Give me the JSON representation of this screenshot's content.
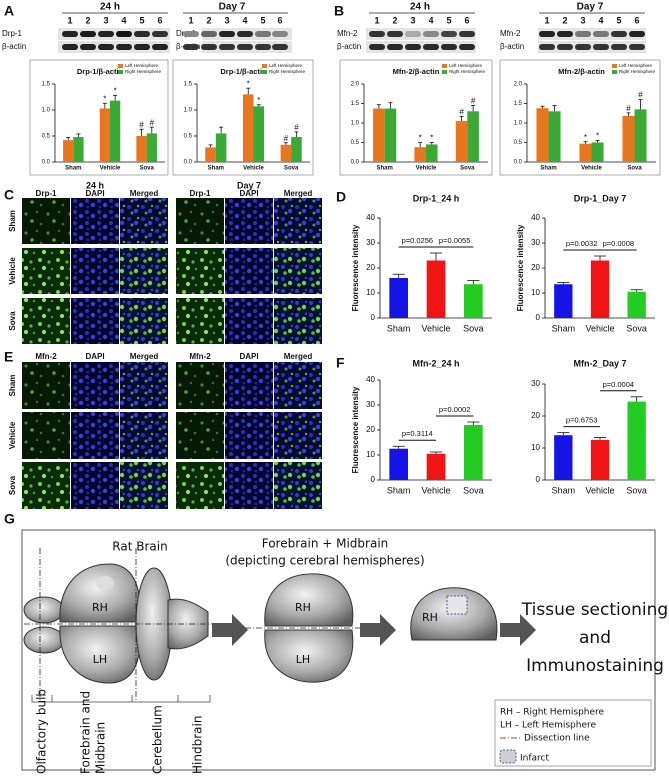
{
  "panels": [
    "A",
    "B",
    "C",
    "D",
    "E",
    "F",
    "G"
  ],
  "blots": [
    {
      "time": "24 h",
      "lanes": [
        1,
        2,
        3,
        4,
        5,
        6
      ],
      "rows": [
        "Drp-1",
        "β-actin"
      ]
    },
    {
      "time": "Day 7",
      "lanes": [
        1,
        2,
        3,
        4,
        5,
        6
      ],
      "rows": [
        "Drp-1",
        "β-actin"
      ]
    },
    {
      "time": "24 h",
      "lanes": [
        1,
        2,
        3,
        4,
        5,
        6
      ],
      "rows": [
        "Mfn-2",
        "β-actin"
      ]
    },
    {
      "time": "Day 7",
      "lanes": [
        1,
        2,
        3,
        4,
        5,
        6
      ],
      "rows": [
        "Mfn-2",
        "β-actin"
      ]
    }
  ],
  "microscopy": [
    {
      "time_points": [
        "24 h",
        "Day 7"
      ],
      "columns": [
        [
          "Drp-1",
          "DAPI",
          "Merged"
        ],
        [
          "Drp-1",
          "DAPI",
          "Merged"
        ]
      ],
      "rows": [
        "Sham",
        "Vehicle",
        "Sova"
      ]
    },
    {
      "columns": [
        [
          "Mfn-2",
          "DAPI",
          "Merged"
        ],
        [
          "Mfn-2",
          "DAPI",
          "Merged"
        ]
      ],
      "rows": [
        "Sham",
        "Vehicle",
        "Sova"
      ]
    }
  ],
  "chart_data": [
    {
      "type": "bar",
      "title": "Drp-1/β-actin",
      "categories": [
        "Sham",
        "Vehicle",
        "Sova"
      ],
      "series": [
        {
          "name": "Left Hemisphere",
          "color": "#e8761e",
          "values": [
            0.42,
            1.03,
            0.5
          ],
          "errors": [
            0.05,
            0.1,
            0.13
          ],
          "markers": [
            null,
            "*",
            "#"
          ]
        },
        {
          "name": "Right Hemisphere",
          "color": "#3aa935",
          "values": [
            0.48,
            1.18,
            0.55
          ],
          "errors": [
            0.06,
            0.1,
            0.12
          ],
          "markers": [
            null,
            "*",
            "#"
          ]
        }
      ],
      "ylim": [
        0,
        1.5
      ],
      "yticks": [
        {
          "value": 0,
          "label": "0.0"
        },
        {
          "value": 0.5,
          "label": "0.5"
        },
        {
          "value": 1,
          "label": "1.0"
        },
        {
          "value": 1.5,
          "label": "1.5"
        }
      ]
    },
    {
      "type": "bar",
      "title": "Drp-1/β-actin",
      "categories": [
        "Sham",
        "Vehicle",
        "Sova"
      ],
      "series": [
        {
          "name": "Left Hemisphere",
          "color": "#e8761e",
          "values": [
            0.28,
            1.3,
            0.33
          ],
          "errors": [
            0.05,
            0.12,
            0.04
          ],
          "markers": [
            null,
            "*",
            "#"
          ]
        },
        {
          "name": "Right Hemisphere",
          "color": "#3aa935",
          "values": [
            0.55,
            1.07,
            0.48
          ],
          "errors": [
            0.12,
            0.03,
            0.1
          ],
          "markers": [
            null,
            "*",
            "#"
          ]
        }
      ],
      "ylim": [
        0,
        1.5
      ],
      "yticks": [
        {
          "value": 0,
          "label": "0.0"
        },
        {
          "value": 0.5,
          "label": "0.5"
        },
        {
          "value": 1,
          "label": "1.0"
        },
        {
          "value": 1.5,
          "label": "1.5"
        }
      ]
    },
    {
      "type": "bar",
      "title": "Mfn-2/β-actin",
      "categories": [
        "Sham",
        "Vehicle",
        "Sova"
      ],
      "series": [
        {
          "name": "Left Hemisphere",
          "color": "#e8761e",
          "values": [
            1.37,
            0.38,
            1.05
          ],
          "errors": [
            0.1,
            0.12,
            0.12
          ],
          "markers": [
            null,
            "*",
            "#"
          ]
        },
        {
          "name": "Right Hemisphere",
          "color": "#3aa935",
          "values": [
            1.37,
            0.45,
            1.3
          ],
          "errors": [
            0.15,
            0.05,
            0.15
          ],
          "markers": [
            null,
            "*",
            "#"
          ]
        }
      ],
      "ylim": [
        0,
        2
      ],
      "yticks": [
        {
          "value": 0,
          "label": "0.0"
        },
        {
          "value": 0.5,
          "label": "0.5"
        },
        {
          "value": 1,
          "label": "1.0"
        },
        {
          "value": 1.5,
          "label": "1.5"
        },
        {
          "value": 2,
          "label": "2.0"
        }
      ]
    },
    {
      "type": "bar",
      "title": "Mfn-2/β-actin",
      "categories": [
        "Sham",
        "Vehicle",
        "Sova"
      ],
      "series": [
        {
          "name": "Left Hemisphere",
          "color": "#e8761e",
          "values": [
            1.38,
            0.47,
            1.18
          ],
          "errors": [
            0.05,
            0.05,
            0.08
          ],
          "markers": [
            null,
            "*",
            "#"
          ]
        },
        {
          "name": "Right Hemisphere",
          "color": "#3aa935",
          "values": [
            1.3,
            0.5,
            1.35
          ],
          "errors": [
            0.15,
            0.05,
            0.25
          ],
          "markers": [
            null,
            "*",
            "#"
          ]
        }
      ],
      "ylim": [
        0,
        2
      ],
      "yticks": [
        {
          "value": 0,
          "label": "0.0"
        },
        {
          "value": 0.5,
          "label": "0.5"
        },
        {
          "value": 1,
          "label": "1.0"
        },
        {
          "value": 1.5,
          "label": "1.5"
        },
        {
          "value": 2,
          "label": "2.0"
        }
      ]
    },
    {
      "type": "bar",
      "title": "Drp-1_24 h",
      "ylabel": "Fluorescence intensity",
      "categories": [
        "Sham",
        "Vehicle",
        "Sova"
      ],
      "values": [
        16,
        23,
        13.5
      ],
      "errors": [
        1.5,
        3,
        1.5
      ],
      "colors": [
        "#1414e6",
        "#f01414",
        "#22cc22"
      ],
      "ylim": [
        0,
        40
      ],
      "yticks": [
        0,
        10,
        20,
        30,
        40
      ],
      "comparisons": [
        "p=0.0256",
        "p=0.0055"
      ]
    },
    {
      "type": "bar",
      "title": "Drp-1_Day 7",
      "ylabel": "Fluorescence intensity",
      "categories": [
        "Sham",
        "Vehicle",
        "Sova"
      ],
      "values": [
        13.5,
        23,
        10.5
      ],
      "errors": [
        0.7,
        1.8,
        0.8
      ],
      "colors": [
        "#1414e6",
        "#f01414",
        "#22cc22"
      ],
      "ylim": [
        0,
        40
      ],
      "yticks": [
        0,
        10,
        20,
        30,
        40
      ],
      "comparisons": [
        "p=0.0032",
        "p=0.0008"
      ]
    },
    {
      "type": "bar",
      "title": "Mfn-2_24 h",
      "ylabel": "Fluorescence intensity",
      "categories": [
        "Sham",
        "Vehicle",
        "Sova"
      ],
      "values": [
        12.5,
        10.5,
        22
      ],
      "errors": [
        1,
        0.7,
        1.2
      ],
      "colors": [
        "#1414e6",
        "#f01414",
        "#22cc22"
      ],
      "ylim": [
        0,
        40
      ],
      "yticks": [
        0,
        10,
        20,
        30,
        40
      ],
      "comparisons": [
        "p=0.3114",
        "p=0.0002"
      ]
    },
    {
      "type": "bar",
      "title": "Mfn-2_Day 7",
      "categories": [
        "Sham",
        "Vehicle",
        "Sova"
      ],
      "values": [
        14,
        12.5,
        24.5
      ],
      "errors": [
        0.8,
        0.8,
        1.5
      ],
      "colors": [
        "#1414e6",
        "#f01414",
        "#22cc22"
      ],
      "ylim": [
        0,
        30
      ],
      "yticks": [
        0,
        10,
        20,
        30
      ],
      "comparisons": [
        "p=0.6753",
        "p=0.0004"
      ]
    }
  ],
  "diagram": {
    "rat_brain": "Rat Brain",
    "forebrain_title": "Forebrain + Midbrain",
    "forebrain_subtitle": "(depicting cerebral hemispheres)",
    "hemisphere_labels": [
      "RH",
      "LH",
      "RH",
      "LH",
      "RH"
    ],
    "final_step": [
      "Tissue sectioning",
      "and",
      "Immunostaining"
    ],
    "regions": [
      "Olfactory bulb",
      "Forebrain and",
      "Midbrain",
      "Cerebellum",
      "Hindbrain"
    ],
    "legend": [
      "RH – Right Hemisphere",
      "LH – Left Hemisphere",
      "Dissection line",
      "Infarct"
    ]
  }
}
